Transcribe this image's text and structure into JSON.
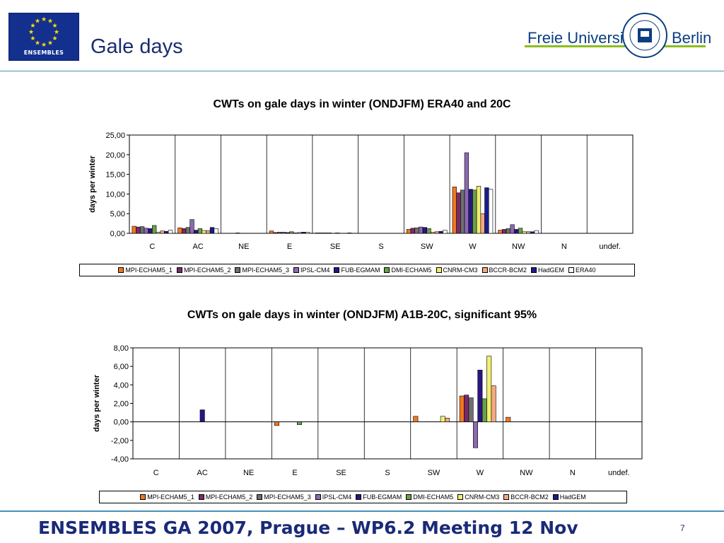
{
  "slide": {
    "title": "Gale days",
    "logo_text": "ENSEMBLES",
    "university_name": "Freie Universität",
    "university_city": "Berlin",
    "footer": "ENSEMBLES GA 2007, Prague – WP6.2 Meeting 12 Nov",
    "page_number": "7"
  },
  "colors": {
    "eu_blue": "#13308f",
    "eu_star": "#ffdd00",
    "accent_line": "#4a90b8",
    "fu_green": "#8cbd1e",
    "fu_blue": "#0b3f82"
  },
  "chart_data": [
    {
      "type": "bar",
      "title": "CWTs on gale days in winter (ONDJFM) ERA40 and 20C",
      "ylabel": "days per winter",
      "xlabel": "",
      "ylim": [
        0,
        25
      ],
      "ytick_labels": [
        "0,00",
        "5,00",
        "10,00",
        "15,00",
        "20,00",
        "25,00"
      ],
      "categories": [
        "C",
        "AC",
        "NE",
        "E",
        "SE",
        "S",
        "SW",
        "W",
        "NW",
        "N",
        "undef."
      ],
      "legend_position": "bottom",
      "grid": "vertical category separators",
      "series": [
        {
          "name": "MPI-ECHAM5_1",
          "color": "#f07820",
          "values": [
            1.8,
            1.4,
            0,
            0.6,
            0.1,
            0,
            1.0,
            11.8,
            0.8,
            0,
            0
          ]
        },
        {
          "name": "MPI-ECHAM5_2",
          "color": "#7a2a6a",
          "values": [
            1.6,
            1.2,
            0,
            0.2,
            0.1,
            0,
            1.3,
            10.3,
            1.0,
            0,
            0
          ]
        },
        {
          "name": "MPI-ECHAM5_3",
          "color": "#6f6f6f",
          "values": [
            1.7,
            1.5,
            0,
            0.3,
            0.1,
            0,
            1.4,
            11.0,
            1.2,
            0,
            0
          ]
        },
        {
          "name": "IPSL-CM4",
          "color": "#8a6ab0",
          "values": [
            1.3,
            3.5,
            0.1,
            0.3,
            0.1,
            0,
            1.6,
            20.5,
            2.2,
            0,
            0
          ]
        },
        {
          "name": "FUB-EGMAM",
          "color": "#2a1580",
          "values": [
            1.2,
            0.8,
            0,
            0.2,
            0,
            0,
            1.5,
            11.2,
            1.0,
            0,
            0
          ]
        },
        {
          "name": "DMI-ECHAM5",
          "color": "#6aa04a",
          "values": [
            2.0,
            1.2,
            0,
            0.4,
            0.1,
            0,
            1.2,
            11.0,
            1.3,
            0,
            0
          ]
        },
        {
          "name": "CNRM-CM3",
          "color": "#f0f070",
          "values": [
            0.3,
            0.7,
            0,
            0.1,
            0,
            0,
            0.3,
            12.0,
            0.4,
            0,
            0
          ]
        },
        {
          "name": "BCCR-BCM2",
          "color": "#f4a882",
          "values": [
            0.6,
            0.7,
            0,
            0.2,
            0,
            0,
            0.4,
            5.0,
            0.4,
            0,
            0
          ]
        },
        {
          "name": "HadGEM",
          "color": "#1a1a90",
          "values": [
            0.5,
            1.5,
            0,
            0.3,
            0.1,
            0,
            0.5,
            11.6,
            0.4,
            0,
            0
          ]
        },
        {
          "name": "ERA40",
          "color": "#ffffff",
          "values": [
            0.8,
            1.2,
            0,
            0.3,
            0,
            0,
            0.8,
            11.2,
            0.7,
            0,
            0
          ]
        }
      ]
    },
    {
      "type": "bar",
      "title": "CWTs on gale days in winter (ONDJFM) A1B-20C, significant 95%",
      "ylabel": "days per winter",
      "xlabel": "",
      "ylim": [
        -4,
        8
      ],
      "ytick_labels": [
        "-4,00",
        "-2,00",
        "0,00",
        "2,00",
        "4,00",
        "6,00",
        "8,00"
      ],
      "categories": [
        "C",
        "AC",
        "NE",
        "E",
        "SE",
        "S",
        "SW",
        "W",
        "NW",
        "N",
        "undef."
      ],
      "legend_position": "bottom",
      "grid": "vertical category separators",
      "series": [
        {
          "name": "MPI-ECHAM5_1",
          "color": "#f07820",
          "values": [
            0,
            0,
            0,
            -0.4,
            0,
            0,
            0.6,
            2.8,
            0.5,
            0,
            0
          ]
        },
        {
          "name": "MPI-ECHAM5_2",
          "color": "#7a2a6a",
          "values": [
            0,
            0,
            0,
            0,
            0,
            0,
            0,
            2.9,
            0,
            0,
            0
          ]
        },
        {
          "name": "MPI-ECHAM5_3",
          "color": "#6f6f6f",
          "values": [
            0,
            0,
            0,
            0,
            0,
            0,
            0,
            2.6,
            0,
            0,
            0
          ]
        },
        {
          "name": "IPSL-CM4",
          "color": "#8a6ab0",
          "values": [
            0,
            0,
            0,
            0,
            0,
            0,
            0,
            -2.8,
            0,
            0,
            0
          ]
        },
        {
          "name": "FUB-EGMAM",
          "color": "#2a1580",
          "values": [
            0,
            1.3,
            0,
            0,
            0,
            0,
            0,
            5.6,
            0,
            0,
            0
          ]
        },
        {
          "name": "DMI-ECHAM5",
          "color": "#6aa04a",
          "values": [
            0,
            0,
            0,
            -0.3,
            0,
            0,
            0,
            2.5,
            0,
            0,
            0
          ]
        },
        {
          "name": "CNRM-CM3",
          "color": "#f0f070",
          "values": [
            0,
            0,
            0,
            0,
            0,
            0,
            0.6,
            7.1,
            0,
            0,
            0
          ]
        },
        {
          "name": "BCCR-BCM2",
          "color": "#f4a882",
          "values": [
            0,
            0,
            0,
            0,
            0,
            0,
            0.4,
            3.9,
            0,
            0,
            0
          ]
        },
        {
          "name": "HadGEM",
          "color": "#1a1a90",
          "values": [
            0,
            0,
            0,
            0,
            0,
            0,
            0,
            0,
            0,
            0,
            0
          ]
        }
      ]
    }
  ]
}
